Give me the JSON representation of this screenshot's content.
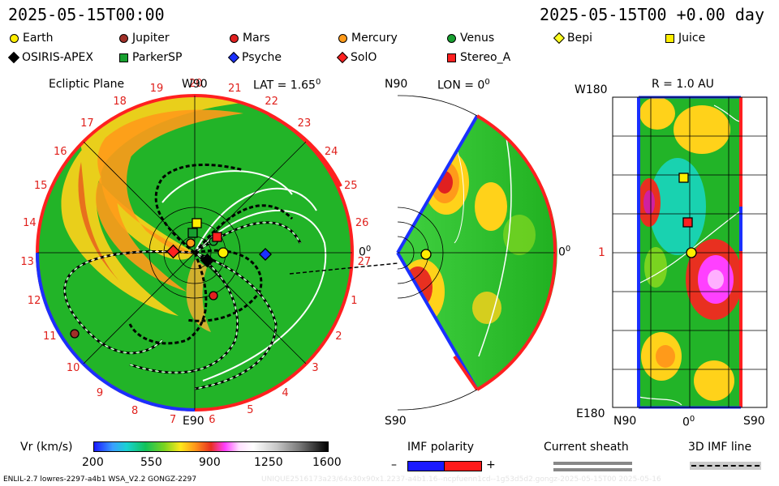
{
  "header": {
    "date_left": "2025-05-15T00:00",
    "date_right": "2025-05-15T00 +0.00 day"
  },
  "legend": [
    {
      "name": "Earth",
      "shape": "circle",
      "color": "#ffee00"
    },
    {
      "name": "Jupiter",
      "shape": "circle",
      "color": "#a03028"
    },
    {
      "name": "Mars",
      "shape": "circle",
      "color": "#e02020"
    },
    {
      "name": "Mercury",
      "shape": "circle",
      "color": "#ff9a1a"
    },
    {
      "name": "Venus",
      "shape": "circle",
      "color": "#18a030"
    },
    {
      "name": "Bepi",
      "shape": "diamond",
      "color": "#ffff20"
    },
    {
      "name": "Juice",
      "shape": "square",
      "color": "#ffee00"
    },
    {
      "name": "OSIRIS-APEX",
      "shape": "diamond",
      "color": "#000000"
    },
    {
      "name": "ParkerSP",
      "shape": "square",
      "color": "#18a030"
    },
    {
      "name": "Psyche",
      "shape": "diamond",
      "color": "#1a30ff"
    },
    {
      "name": "SolO",
      "shape": "diamond",
      "color": "#ff2020"
    },
    {
      "name": "Stereo_A",
      "shape": "square",
      "color": "#ff2020"
    }
  ],
  "ecliptic": {
    "title": "Ecliptic Plane",
    "top_label": "W90",
    "bottom_label": "E90",
    "lat_label": "LAT = 1.65",
    "lat_sup": "0",
    "zero_label": "0",
    "zero_sup": "0",
    "ring_numbers": [
      "20",
      "21",
      "22",
      "23",
      "24",
      "25",
      "26",
      "27",
      "1",
      "2",
      "3",
      "4",
      "5",
      "6",
      "7",
      "8",
      "9",
      "10",
      "11",
      "12",
      "13",
      "14",
      "15",
      "16",
      "17",
      "18",
      "19"
    ]
  },
  "meridional": {
    "top_label": "N90",
    "bottom_label": "S90",
    "lon_label": "LON = 0",
    "lon_sup": "0",
    "zero_label": "0",
    "zero_sup": "0"
  },
  "radial": {
    "title": "R = 1.0 AU",
    "top_left": "W180",
    "mid_left": "1",
    "bottom_left": "E180",
    "x_labels": [
      "N90",
      "0",
      "S90"
    ],
    "x_mid_sup": "0"
  },
  "colorbar": {
    "label": "Vr (km/s)",
    "ticks": [
      "200",
      "550",
      "900",
      "1250",
      "1600"
    ]
  },
  "imf": {
    "label": "IMF polarity",
    "minus": "–",
    "plus": "+",
    "neg_color": "#1a1aff",
    "pos_color": "#ff1a1a"
  },
  "sheath": {
    "label": "Current sheath"
  },
  "imf3d": {
    "label": "3D IMF line"
  },
  "footer": {
    "model": "ENLIL-2.7 lowres-2297-a4b1 WSA_V2.2 GONGZ-2297",
    "watermark": "UNIQUE2516173a23/64x30x90x1.2237-a4b1.16--ncpfuenn1cd--1g53d5d2.gongz-2025-05-15T00    2025-05-16"
  }
}
